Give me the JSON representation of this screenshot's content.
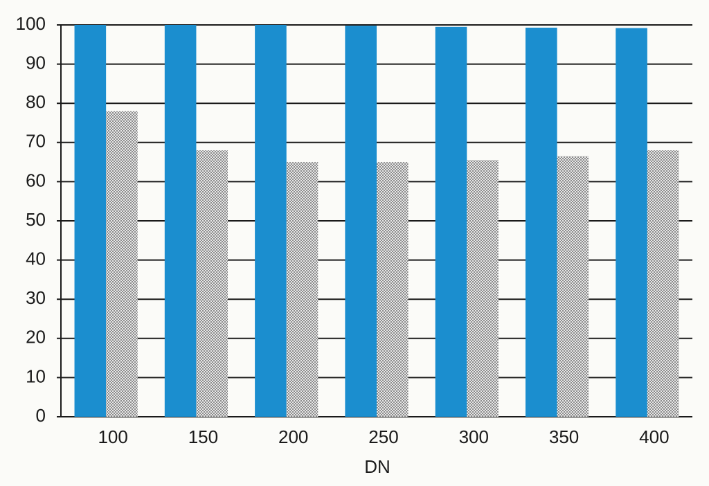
{
  "chart_data": {
    "type": "bar",
    "x_label": "DN",
    "categories": [
      "100",
      "150",
      "200",
      "250",
      "300",
      "350",
      "400"
    ],
    "series": [
      {
        "color": "#1b8ecf",
        "values": [
          100,
          100,
          100,
          99.8,
          99.5,
          99.3,
          99.2
        ]
      },
      {
        "color": "#8c8c8c",
        "values": [
          78,
          68,
          65,
          65,
          65.5,
          66.5,
          68
        ]
      }
    ],
    "ylim": [
      0,
      100
    ],
    "yticks": [
      0,
      10,
      20,
      30,
      40,
      50,
      60,
      70,
      80,
      90,
      100
    ],
    "grid": true
  }
}
